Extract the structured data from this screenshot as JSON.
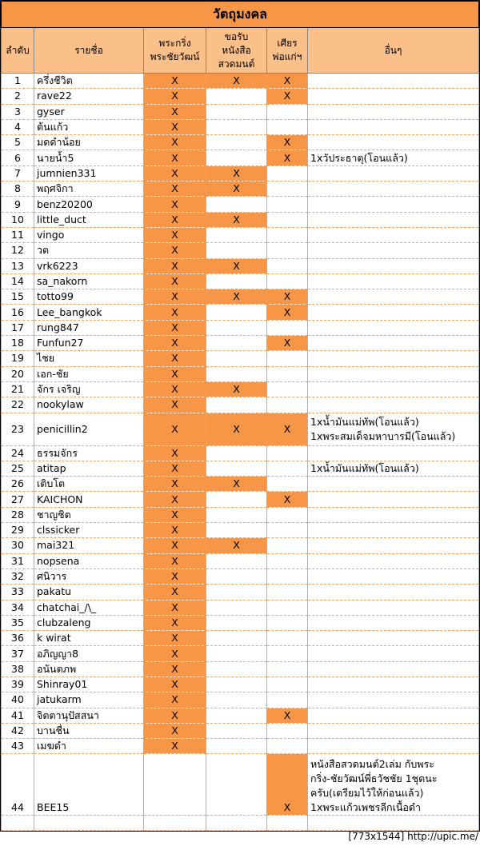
{
  "title": "วัตถุมงคล",
  "headers": [
    "ลำดับ",
    "รายชื่อ",
    "พระกริ่ง\nพระชัยวัฒน์",
    "ขอรับ\nหนังสือ\nสวดมนต์",
    "เศียร\nพ่อแก่ฯ",
    "อื่นๆ"
  ],
  "rows": [
    [
      "1",
      "ครึ่งชีวิต",
      "X",
      "X",
      "X",
      []
    ],
    [
      "2",
      "rave22",
      "X",
      null,
      "X",
      []
    ],
    [
      "3",
      "gyser",
      "X",
      null,
      null,
      []
    ],
    [
      "4",
      "ต้นแก้ว",
      "X",
      null,
      null,
      []
    ],
    [
      "5",
      "มดดำน้อย",
      "X",
      null,
      "X",
      []
    ],
    [
      "6",
      "นายน้ำ5",
      "X",
      null,
      "X",
      [
        "1xวัประธาตุ(โอนแล้ว)"
      ]
    ],
    [
      "7",
      "jumnien331",
      "X",
      "X",
      null,
      []
    ],
    [
      "8",
      "พฤศจิกา",
      "X",
      "X",
      null,
      []
    ],
    [
      "9",
      "benz20200",
      "X",
      null,
      null,
      []
    ],
    [
      "10",
      "little_duct",
      "X",
      "X",
      null,
      []
    ],
    [
      "11",
      "vingo",
      "X",
      null,
      null,
      []
    ],
    [
      "12",
      "วต",
      "X",
      null,
      null,
      []
    ],
    [
      "13",
      "vrk6223",
      "X",
      "X",
      null,
      []
    ],
    [
      "14",
      "sa_nakorn",
      "X",
      null,
      null,
      []
    ],
    [
      "15",
      "totto99",
      "X",
      "X",
      "X",
      []
    ],
    [
      "16",
      "Lee_bangkok",
      "X",
      null,
      "X",
      []
    ],
    [
      "17",
      "rung847",
      "X",
      null,
      null,
      []
    ],
    [
      "18",
      "Funfun27",
      "X",
      null,
      "X",
      []
    ],
    [
      "19",
      "ไชย",
      "X",
      null,
      null,
      []
    ],
    [
      "20",
      "เอก-ชัย",
      "X",
      null,
      null,
      []
    ],
    [
      "21",
      "จักร  เจริญ",
      "X",
      "X",
      null,
      []
    ],
    [
      "22",
      "nookylaw",
      "X",
      null,
      null,
      []
    ],
    [
      "23",
      "penicillin2",
      "X",
      "X",
      "X",
      [
        "1xน้ำมันแม่ทัพ(โอนแล้ว)",
        "1xพระสมเด็จมหาบารมี(โอนแล้ว)"
      ]
    ],
    [
      "24",
      "ธรรมจักร",
      "X",
      null,
      null,
      []
    ],
    [
      "25",
      "atitap",
      "X",
      null,
      null,
      [
        "1xน้ำมันแม่ทัพ(โอนแล้ว)"
      ]
    ],
    [
      "26",
      "เติบโต",
      "X",
      "X",
      null,
      []
    ],
    [
      "27",
      "KAICHON",
      "X",
      null,
      "X",
      []
    ],
    [
      "28",
      "ชาญชิต",
      "X",
      null,
      null,
      []
    ],
    [
      "29",
      "clssicker",
      "X",
      null,
      null,
      []
    ],
    [
      "30",
      "mai321",
      "X",
      "X",
      null,
      []
    ],
    [
      "31",
      "nopsena",
      "X",
      null,
      null,
      []
    ],
    [
      "32",
      "ศนิวาร",
      "X",
      null,
      null,
      []
    ],
    [
      "33",
      "pakatu",
      "X",
      null,
      null,
      []
    ],
    [
      "34",
      "chatchai_/\\_",
      "X",
      null,
      null,
      []
    ],
    [
      "35",
      "clubzaleng",
      "X",
      null,
      null,
      []
    ],
    [
      "36",
      "k wirat",
      "X",
      null,
      null,
      []
    ],
    [
      "37",
      "อภิญญา8",
      "X",
      null,
      null,
      []
    ],
    [
      "38",
      "อนันตภพ",
      "X",
      null,
      null,
      []
    ],
    [
      "39",
      "Shinray01",
      "X",
      null,
      null,
      []
    ],
    [
      "40",
      "jatukarm",
      "X",
      null,
      null,
      []
    ],
    [
      "41",
      "จิตตานุปัสสนา",
      "X",
      null,
      "X",
      []
    ],
    [
      "42",
      "บานชื่น",
      "X",
      null,
      null,
      []
    ],
    [
      "43",
      "เมฆดำ",
      "X",
      null,
      null,
      []
    ],
    [
      "44",
      "BEE15",
      null,
      null,
      "X",
      [
        "หนังสือสวดมนต์2เล่ม  กับพระ",
        "กริ่ง-ชัยวัฒน์พี่ธวัชชัย  1ชุดนะ",
        "ครับ(เตรียมไว้ให้ก่อนแล้ว)",
        "1xพระแก้วเพชรลีกเนื้อดำ"
      ]
    ]
  ],
  "footer": "[773x1544] http://upic.me/"
}
